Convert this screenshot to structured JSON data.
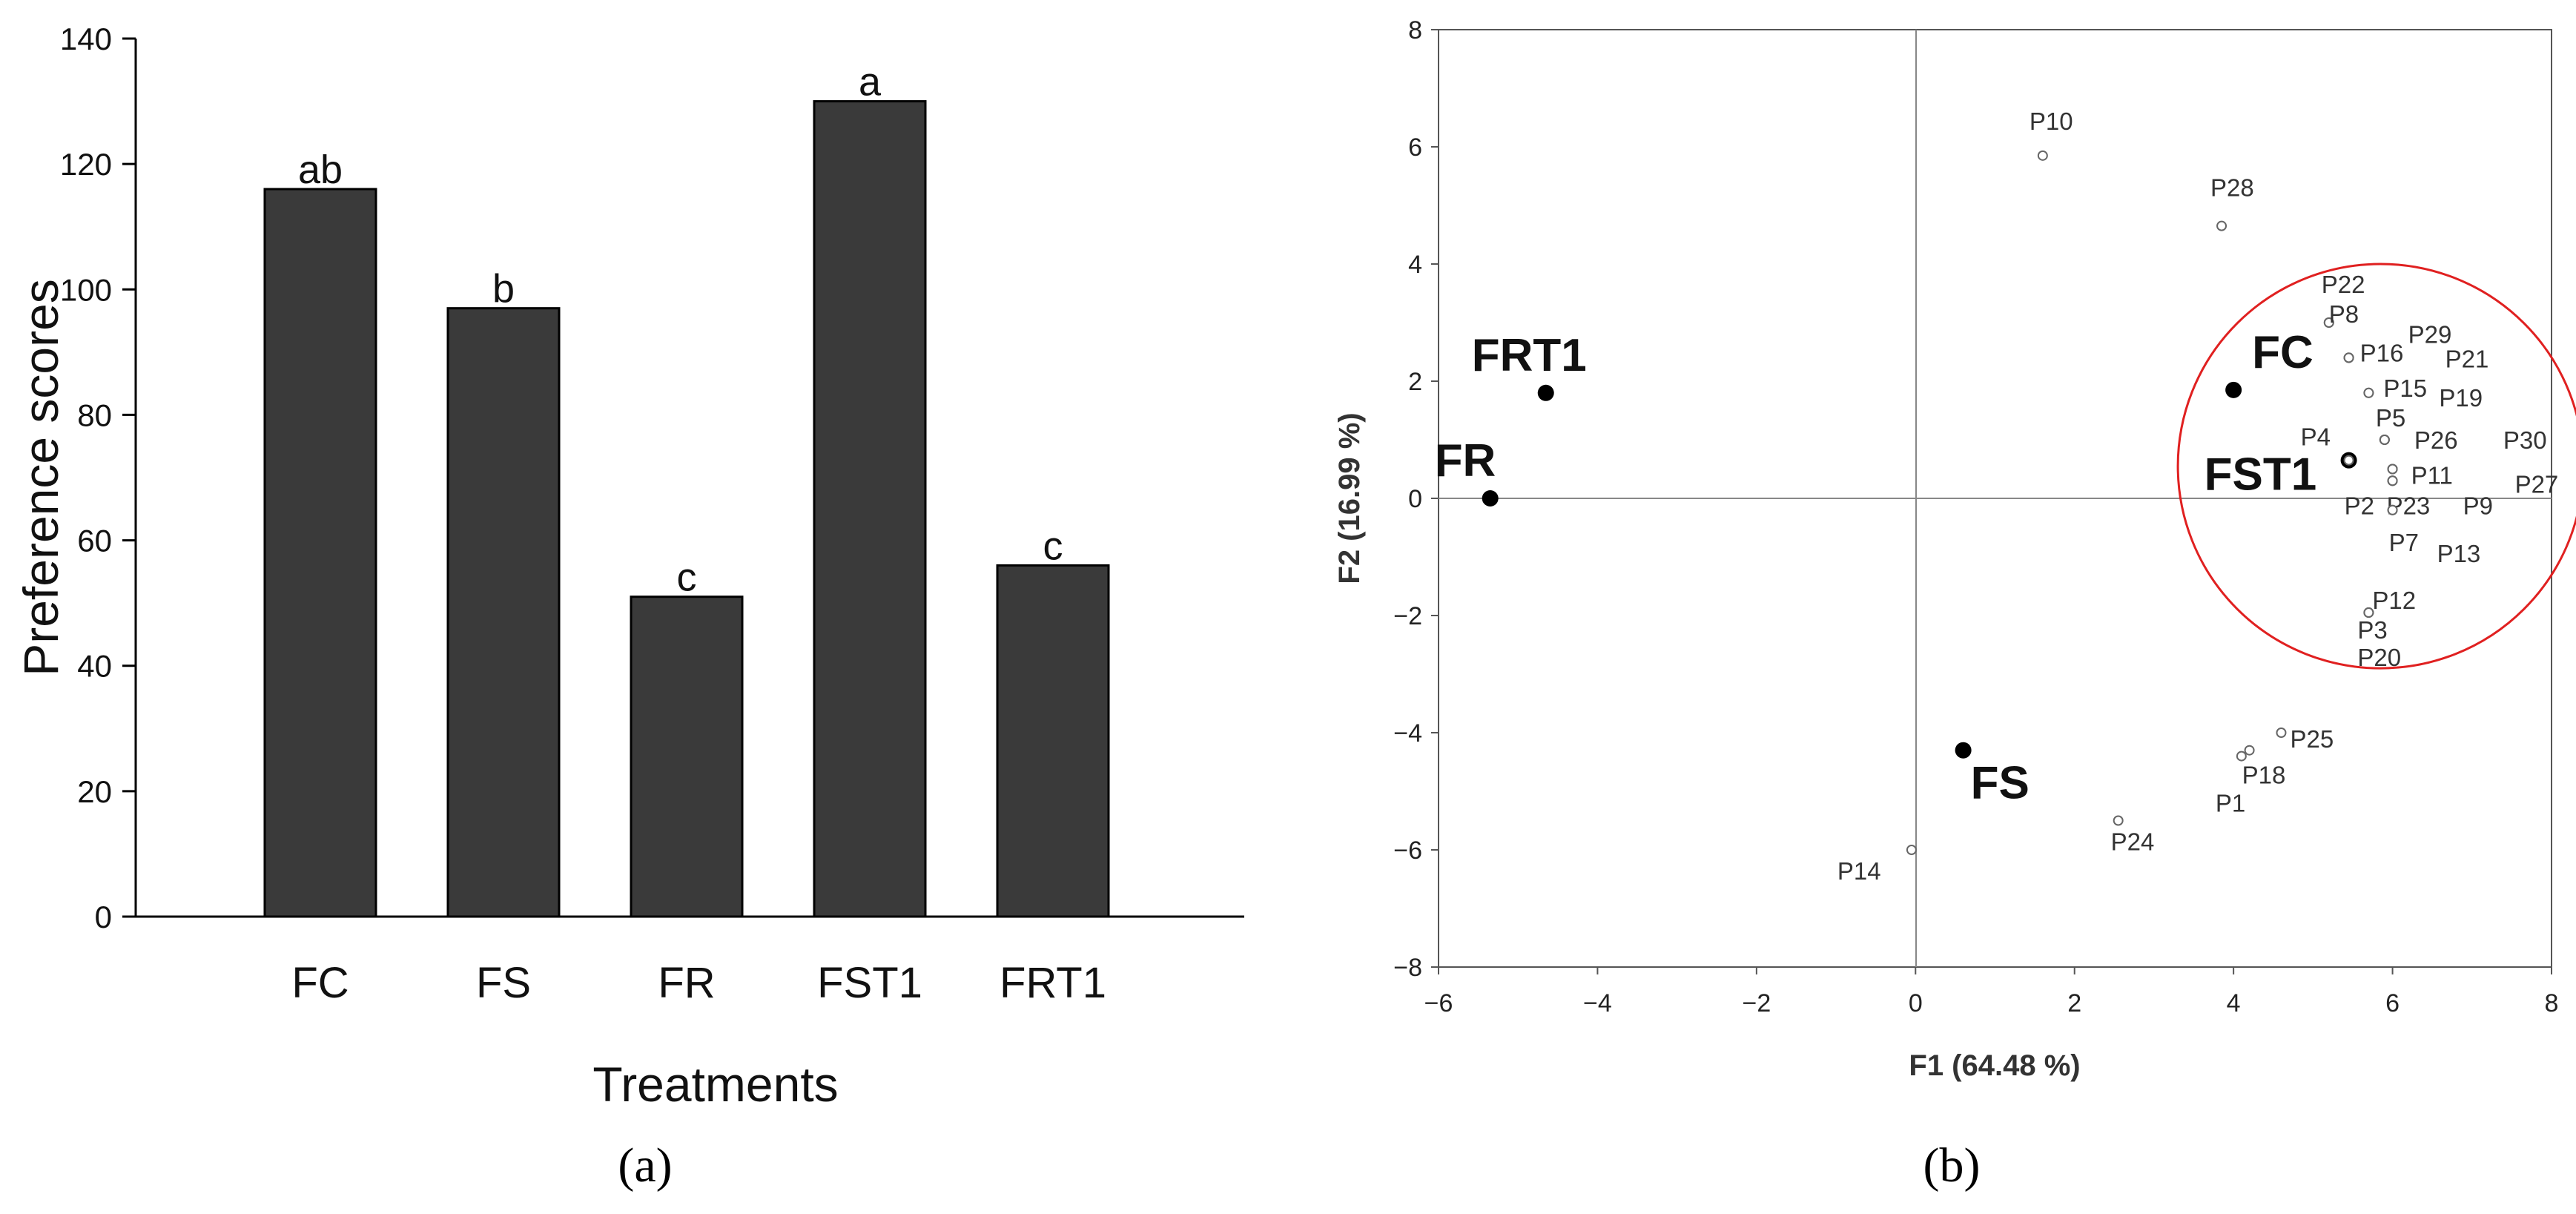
{
  "chart_data": [
    {
      "type": "bar",
      "panel_label": "(a)",
      "xlabel": "Treatments",
      "ylabel": "Preference scores",
      "categories": [
        "FC",
        "FS",
        "FR",
        "FST1",
        "FRT1"
      ],
      "values": [
        116,
        97,
        51,
        130,
        56
      ],
      "significance_letters": [
        "ab",
        "b",
        "c",
        "a",
        "c"
      ],
      "ylim": [
        0,
        140
      ],
      "yticks": [
        0,
        20,
        40,
        60,
        80,
        100,
        120,
        140
      ],
      "bar_color": "#3a3a3a",
      "grid": false
    },
    {
      "type": "scatter",
      "panel_label": "(b)",
      "xlabel": "F1 (64.48 %)",
      "ylabel": "F2 (16.99 %)",
      "xlim": [
        -6,
        8
      ],
      "ylim": [
        -8,
        8
      ],
      "xticks": [
        -6,
        -4,
        -2,
        0,
        2,
        4,
        6,
        8
      ],
      "yticks": [
        -8,
        -6,
        -4,
        -2,
        0,
        2,
        4,
        6,
        8
      ],
      "grid": false,
      "series": [
        {
          "name": "",
          "marker": "filled",
          "points": [
            {
              "label": "FRT1",
              "x": -4.65,
              "y": 1.8
            },
            {
              "label": "FR",
              "x": -5.35,
              "y": 0.0
            },
            {
              "label": "FC",
              "x": 4.0,
              "y": 1.85
            },
            {
              "label": "FST1",
              "x": 5.45,
              "y": 0.65
            },
            {
              "label": "FS",
              "x": 0.6,
              "y": -4.3
            }
          ]
        },
        {
          "name": "",
          "marker": "open",
          "points": [
            {
              "label": "P10",
              "x": 1.6,
              "y": 5.85
            },
            {
              "label": "P28",
              "x": 3.85,
              "y": 4.65
            },
            {
              "label": "P22",
              "x": 5.2,
              "y": 3.0
            },
            {
              "label": "P8",
              "x": 5.2,
              "y": 3.0
            },
            {
              "label": "P16",
              "x": 5.45,
              "y": 2.4
            },
            {
              "label": "P29",
              "x": 5.45,
              "y": 2.4
            },
            {
              "label": "P21",
              "x": 5.45,
              "y": 2.4
            },
            {
              "label": "P15",
              "x": 5.7,
              "y": 1.8
            },
            {
              "label": "P19",
              "x": 5.7,
              "y": 1.8
            },
            {
              "label": "P5",
              "x": 5.9,
              "y": 1.0
            },
            {
              "label": "P26",
              "x": 5.9,
              "y": 1.0
            },
            {
              "label": "P30",
              "x": 5.9,
              "y": 1.0
            },
            {
              "label": "P4",
              "x": 5.45,
              "y": 0.65
            },
            {
              "label": "P11",
              "x": 6.0,
              "y": 0.5
            },
            {
              "label": "P27",
              "x": 6.0,
              "y": 0.5
            },
            {
              "label": "P2",
              "x": 6.0,
              "y": 0.3
            },
            {
              "label": "P23",
              "x": 6.0,
              "y": 0.3
            },
            {
              "label": "P9",
              "x": 6.0,
              "y": 0.3
            },
            {
              "label": "P7",
              "x": 6.0,
              "y": -0.2
            },
            {
              "label": "P13",
              "x": 6.0,
              "y": -0.2
            },
            {
              "label": "P12",
              "x": 5.7,
              "y": -1.95
            },
            {
              "label": "P3",
              "x": 5.7,
              "y": -1.95
            },
            {
              "label": "P20",
              "x": 5.7,
              "y": -1.95
            },
            {
              "label": "P25",
              "x": 4.6,
              "y": -4.0
            },
            {
              "label": "P18",
              "x": 4.2,
              "y": -4.3
            },
            {
              "label": "P1",
              "x": 4.1,
              "y": -4.4
            },
            {
              "label": "P24",
              "x": 2.55,
              "y": -5.5
            },
            {
              "label": "P14",
              "x": -0.05,
              "y": -6.0
            }
          ]
        }
      ],
      "annotations": [
        {
          "type": "ellipse",
          "color": "#e02020",
          "center": [
            5.85,
            0.55
          ],
          "radius_x": 2.55,
          "radius_y": 3.45
        }
      ]
    }
  ]
}
